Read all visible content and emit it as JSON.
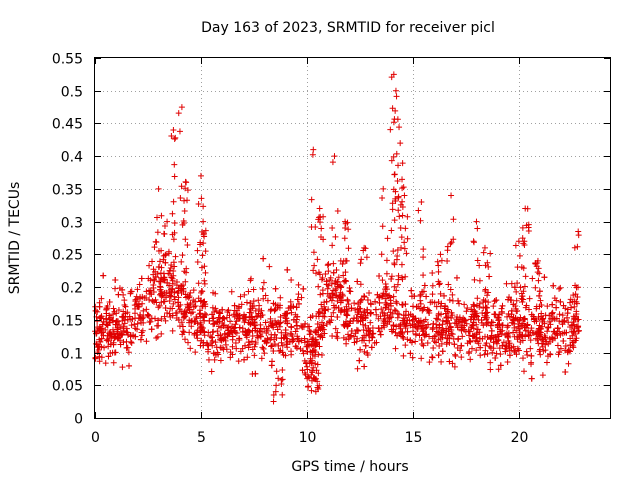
{
  "chart_data": {
    "type": "scatter",
    "title": "Day 163 of 2023, SRMTID for receiver picl",
    "xlabel": "GPS time / hours",
    "ylabel": "SRMTID / TECUs",
    "xlim": [
      0,
      24.3
    ],
    "ylim": [
      0,
      0.55
    ],
    "xticks": [
      0,
      5,
      10,
      15,
      20
    ],
    "yticks": [
      0,
      0.05,
      0.1,
      0.15,
      0.2,
      0.25,
      0.3,
      0.35,
      0.4,
      0.45,
      0.5,
      0.55
    ],
    "ytick_labels": [
      "0",
      "0.05",
      "0.1",
      "0.15",
      "0.2",
      "0.25",
      "0.3",
      "0.35",
      "0.4",
      "0.45",
      "0.5",
      "0.55"
    ],
    "grid": true,
    "marker": "+",
    "marker_color": "#e00000",
    "n_points": 2200,
    "baseline_range": [
      0.05,
      0.25
    ],
    "notable_peaks": [
      {
        "x": 3.7,
        "y": 0.44
      },
      {
        "x": 4.1,
        "y": 0.475
      },
      {
        "x": 5.0,
        "y": 0.37
      },
      {
        "x": 10.3,
        "y": 0.41
      },
      {
        "x": 11.3,
        "y": 0.4
      },
      {
        "x": 14.1,
        "y": 0.525
      },
      {
        "x": 14.2,
        "y": 0.5
      },
      {
        "x": 20.3,
        "y": 0.32
      },
      {
        "x": 22.8,
        "y": 0.285
      }
    ]
  }
}
